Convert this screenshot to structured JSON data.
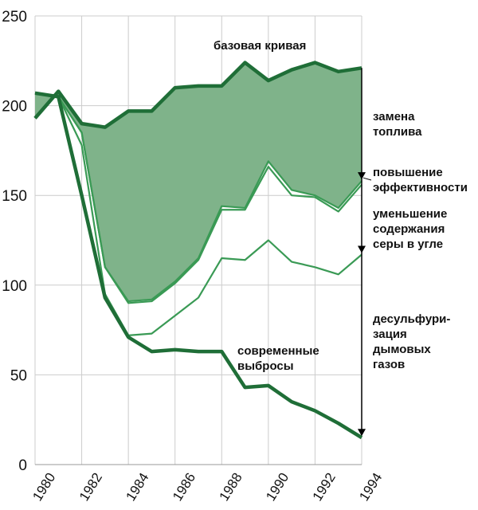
{
  "chart_data": {
    "type": "line",
    "x": [
      1980,
      1981,
      1982,
      1983,
      1984,
      1985,
      1986,
      1987,
      1988,
      1989,
      1990,
      1991,
      1992,
      1993,
      1994
    ],
    "xlim": [
      1980,
      1994
    ],
    "ylim": [
      0,
      250
    ],
    "x_ticks": [
      1980,
      1982,
      1984,
      1986,
      1988,
      1990,
      1992,
      1994
    ],
    "y_ticks": [
      0,
      50,
      100,
      150,
      200,
      250
    ],
    "grid": "horizontal",
    "series": [
      {
        "name": "базовая кривая",
        "values": [
          193,
          208,
          190,
          188,
          197,
          197,
          210,
          211,
          211,
          224,
          214,
          220,
          224,
          219,
          221
        ]
      },
      {
        "name": "",
        "values": [
          207,
          205,
          185,
          110,
          91,
          92,
          102,
          115,
          144,
          143,
          169,
          153,
          150,
          143,
          158
        ]
      },
      {
        "name": "",
        "values": [
          207,
          205,
          185,
          110,
          90,
          91,
          101,
          114,
          142,
          142,
          166,
          150,
          149,
          141,
          156
        ]
      },
      {
        "name": "",
        "values": [
          207,
          205,
          178,
          95,
          72,
          73,
          83,
          93,
          115,
          114,
          125,
          113,
          110,
          106,
          117
        ]
      },
      {
        "name": "современные выбросы",
        "values": [
          207,
          205,
          150,
          93,
          71,
          63,
          64,
          63,
          63,
          43,
          44,
          35,
          30,
          23,
          15
        ]
      }
    ],
    "annotations": {
      "base_label": "базовая кривая",
      "fuel": [
        "замена",
        "топлива"
      ],
      "efficiency": [
        "повышение",
        "эффективности"
      ],
      "sulfur": [
        "уменьшение",
        "содержания",
        "серы в угле"
      ],
      "fgd": [
        "десульфури-",
        "зация",
        "дымовых",
        "газов"
      ],
      "current": [
        "современные",
        "выбросы"
      ]
    },
    "colors": {
      "dark_line": "#1f6e37",
      "light_line": "#3a9a55",
      "fill": "#7fb38a",
      "grid": "#cccccc",
      "arrow": "#000000"
    }
  }
}
